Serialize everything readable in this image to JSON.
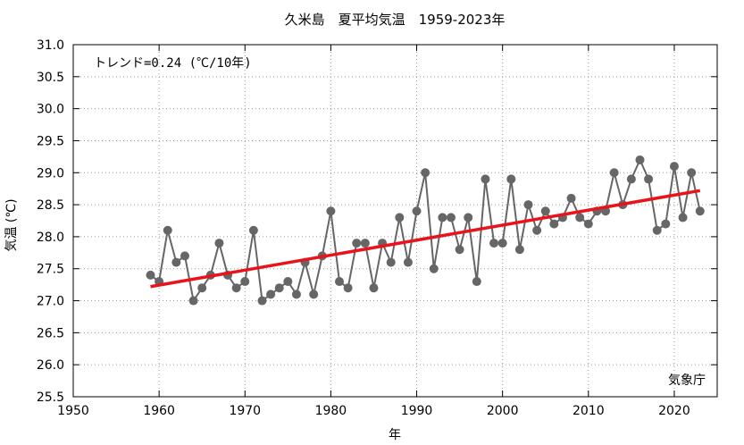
{
  "chart_data": {
    "type": "line",
    "title": "久米島　夏平均気温　1959-2023年",
    "xlabel": "年",
    "ylabel": "気温 (℃)",
    "xlim": [
      1950,
      2025
    ],
    "ylim": [
      25.5,
      31.0
    ],
    "xticks": [
      1950,
      1960,
      1970,
      1980,
      1990,
      2000,
      2010,
      2020
    ],
    "yticks": [
      25.5,
      26.0,
      26.5,
      27.0,
      27.5,
      28.0,
      28.5,
      29.0,
      29.5,
      30.0,
      30.5,
      31.0
    ],
    "xtick_labels": [
      "1950",
      "1960",
      "1970",
      "1980",
      "1990",
      "2000",
      "2010",
      "2020"
    ],
    "ytick_labels": [
      "25.5",
      "26.0",
      "26.5",
      "27.0",
      "27.5",
      "28.0",
      "28.5",
      "29.0",
      "29.5",
      "30.0",
      "30.5",
      "31.0"
    ],
    "grid": true,
    "annotation": "トレンド=0.24 (℃/10年)",
    "credit": "気象庁",
    "colors": {
      "series": "#666666",
      "trend": "#e8141c"
    },
    "series": [
      {
        "x": [
          1959,
          1960,
          1961,
          1962,
          1963,
          1964,
          1965,
          1966,
          1967,
          1968,
          1969,
          1970,
          1971,
          1972,
          1973,
          1974,
          1975,
          1976,
          1977,
          1978,
          1979,
          1980,
          1981,
          1982,
          1983,
          1984,
          1985,
          1986,
          1987,
          1988,
          1989,
          1990,
          1991,
          1992,
          1993,
          1994,
          1995,
          1996,
          1997,
          1998,
          1999,
          2000,
          2001,
          2002,
          2003,
          2004,
          2005,
          2006,
          2007,
          2008,
          2009,
          2010,
          2011,
          2012,
          2013,
          2014,
          2015,
          2016,
          2017,
          2018,
          2019,
          2020,
          2021,
          2022,
          2023
        ],
        "values": [
          27.4,
          27.3,
          28.1,
          27.6,
          27.7,
          27.0,
          27.2,
          27.4,
          27.9,
          27.4,
          27.2,
          27.3,
          28.1,
          27.0,
          27.1,
          27.2,
          27.3,
          27.1,
          27.6,
          27.1,
          27.7,
          28.4,
          27.3,
          27.2,
          27.9,
          27.9,
          27.2,
          27.9,
          27.6,
          28.3,
          27.6,
          28.4,
          29.0,
          27.5,
          28.3,
          28.3,
          27.8,
          28.3,
          27.3,
          28.9,
          27.9,
          27.9,
          28.9,
          27.8,
          28.5,
          28.1,
          28.4,
          28.2,
          28.3,
          28.6,
          28.3,
          28.2,
          28.4,
          28.4,
          29.0,
          28.5,
          28.9,
          29.2,
          28.9,
          28.1,
          28.2,
          29.1,
          28.3,
          29.0,
          28.4
        ]
      }
    ],
    "trend": {
      "x": [
        1959,
        2023
      ],
      "y": [
        27.22,
        28.72
      ]
    }
  }
}
